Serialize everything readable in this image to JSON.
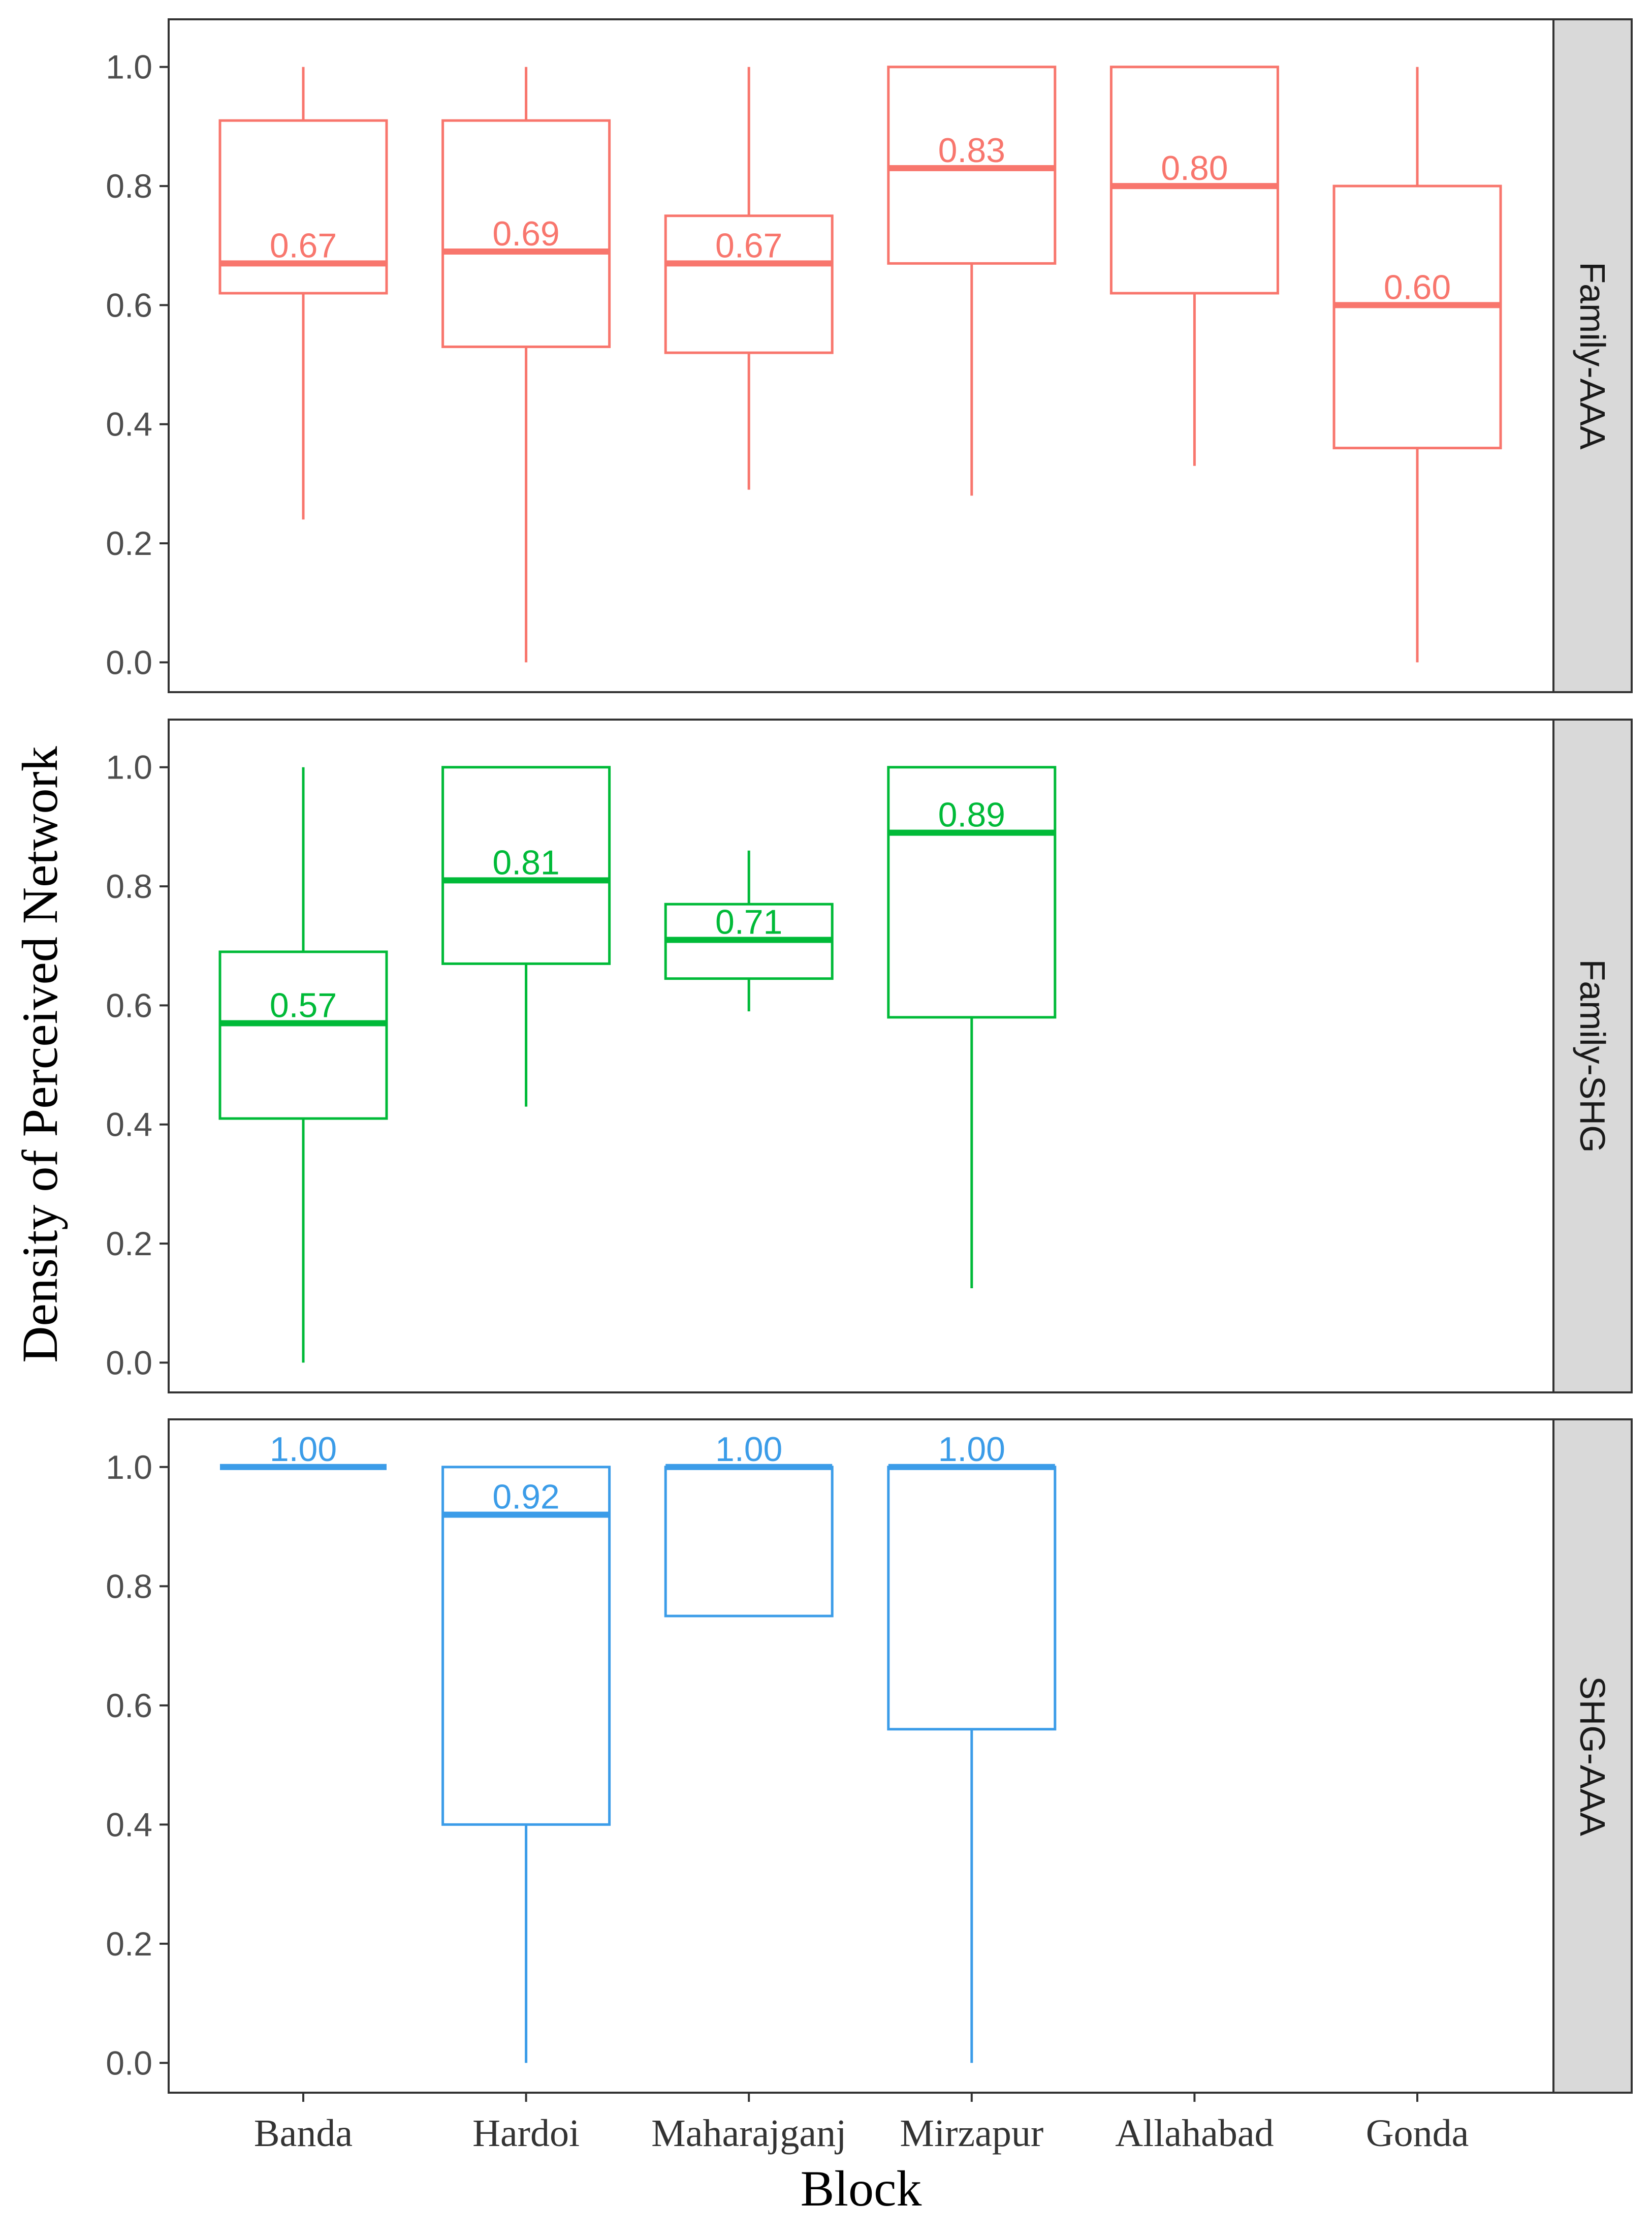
{
  "chart_data": {
    "type": "boxplot",
    "xlabel": "Block",
    "ylabel": "Density of Perceived Network",
    "categories": [
      "Banda",
      "Hardoi",
      "Maharajganj",
      "Mirzapur",
      "Allahabad",
      "Gonda"
    ],
    "y_ticks": [
      "0.0",
      "0.2",
      "0.4",
      "0.6",
      "0.8",
      "1.0"
    ],
    "ylim": [
      -0.05,
      1.08
    ],
    "facets": [
      {
        "name": "Family-AAA",
        "color": "#F8766D",
        "boxes": [
          {
            "category": "Banda",
            "min": 0.24,
            "q1": 0.62,
            "median": 0.67,
            "q3": 0.91,
            "max": 1.0,
            "label": "0.67"
          },
          {
            "category": "Hardoi",
            "min": 0.0,
            "q1": 0.53,
            "median": 0.69,
            "q3": 0.91,
            "max": 1.0,
            "label": "0.69"
          },
          {
            "category": "Maharajganj",
            "min": 0.29,
            "q1": 0.52,
            "median": 0.67,
            "q3": 0.75,
            "max": 1.0,
            "label": "0.67"
          },
          {
            "category": "Mirzapur",
            "min": 0.28,
            "q1": 0.67,
            "median": 0.83,
            "q3": 1.0,
            "max": 1.0,
            "label": "0.83"
          },
          {
            "category": "Allahabad",
            "min": 0.33,
            "q1": 0.62,
            "median": 0.8,
            "q3": 1.0,
            "max": 1.0,
            "label": "0.80"
          },
          {
            "category": "Gonda",
            "min": 0.0,
            "q1": 0.36,
            "median": 0.6,
            "q3": 0.8,
            "max": 1.0,
            "label": "0.60"
          }
        ]
      },
      {
        "name": "Family-SHG",
        "color": "#00BA38",
        "boxes": [
          {
            "category": "Banda",
            "min": 0.0,
            "q1": 0.41,
            "median": 0.57,
            "q3": 0.69,
            "max": 1.0,
            "label": "0.57"
          },
          {
            "category": "Hardoi",
            "min": 0.43,
            "q1": 0.67,
            "median": 0.81,
            "q3": 1.0,
            "max": 1.0,
            "label": "0.81"
          },
          {
            "category": "Maharajganj",
            "min": 0.59,
            "q1": 0.645,
            "median": 0.71,
            "q3": 0.77,
            "max": 0.86,
            "label": "0.71"
          },
          {
            "category": "Mirzapur",
            "min": 0.125,
            "q1": 0.58,
            "median": 0.89,
            "q3": 1.0,
            "max": 1.0,
            "label": "0.89"
          }
        ]
      },
      {
        "name": "SHG-AAA",
        "color": "#3B9CE8",
        "boxes": [
          {
            "category": "Banda",
            "min": 1.0,
            "q1": 1.0,
            "median": 1.0,
            "q3": 1.0,
            "max": 1.0,
            "label": "1.00"
          },
          {
            "category": "Hardoi",
            "min": 0.0,
            "q1": 0.4,
            "median": 0.92,
            "q3": 1.0,
            "max": 1.0,
            "label": "0.92"
          },
          {
            "category": "Maharajganj",
            "min": 0.75,
            "q1": 0.75,
            "median": 1.0,
            "q3": 1.0,
            "max": 1.0,
            "label": "1.00"
          },
          {
            "category": "Mirzapur",
            "min": 0.0,
            "q1": 0.56,
            "median": 1.0,
            "q3": 1.0,
            "max": 1.0,
            "label": "1.00"
          }
        ]
      }
    ]
  }
}
